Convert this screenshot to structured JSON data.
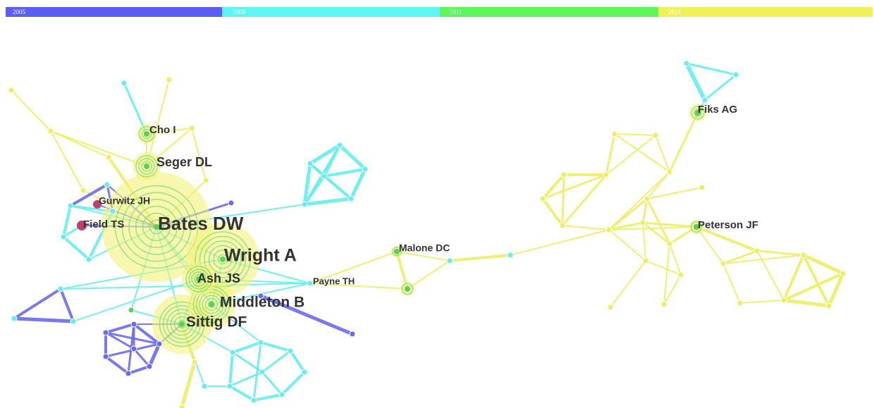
{
  "timeline": [
    "2005",
    "2008",
    "2011",
    "2014"
  ],
  "nodes": [
    "Cho I",
    "Seger DL",
    "Gurwitz JH",
    "Field TS",
    "Bates DW",
    "Wright A",
    "Ash JS",
    "Payne TH",
    "Middleton B",
    "Sittig DF",
    "Malone DC",
    "Fiks AG",
    "Peterson JF"
  ]
}
